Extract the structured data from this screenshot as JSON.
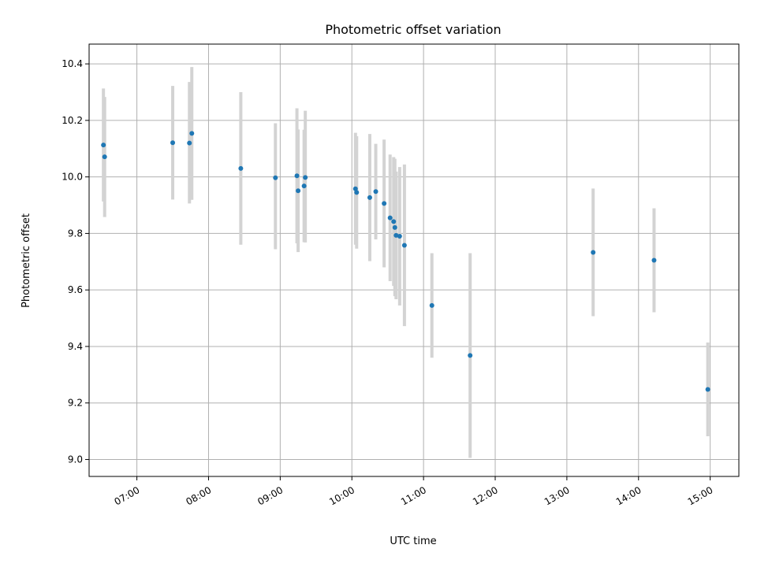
{
  "chart_data": {
    "type": "scatter",
    "title": "Photometric offset variation",
    "xlabel": "UTC time",
    "ylabel": "Photometric offset",
    "xlim": [
      "06:20",
      "15:24"
    ],
    "ylim": [
      8.94,
      10.47
    ],
    "grid": true,
    "x_ticks": [
      "07:00",
      "08:00",
      "09:00",
      "10:00",
      "11:00",
      "12:00",
      "13:00",
      "14:00",
      "15:00"
    ],
    "y_ticks": [
      "9.0",
      "9.2",
      "9.4",
      "9.6",
      "9.8",
      "10.0",
      "10.2",
      "10.4"
    ],
    "colors": {
      "point": "#1f77b4",
      "errorbar": "#d3d3d3",
      "grid": "#b0b0b0"
    },
    "points": [
      {
        "x": "06:32",
        "y": 10.113,
        "yerr_low": 9.913,
        "yerr_high": 10.313
      },
      {
        "x": "06:33",
        "y": 10.071,
        "yerr_low": 9.858,
        "yerr_high": 10.283
      },
      {
        "x": "07:30",
        "y": 10.121,
        "yerr_low": 9.92,
        "yerr_high": 10.322
      },
      {
        "x": "07:44",
        "y": 10.12,
        "yerr_low": 9.906,
        "yerr_high": 10.336
      },
      {
        "x": "07:46",
        "y": 10.154,
        "yerr_low": 9.919,
        "yerr_high": 10.389
      },
      {
        "x": "08:27",
        "y": 10.03,
        "yerr_low": 9.76,
        "yerr_high": 10.3
      },
      {
        "x": "08:56",
        "y": 9.997,
        "yerr_low": 9.744,
        "yerr_high": 10.19
      },
      {
        "x": "09:14",
        "y": 10.004,
        "yerr_low": 9.765,
        "yerr_high": 10.243
      },
      {
        "x": "09:15",
        "y": 9.951,
        "yerr_low": 9.734,
        "yerr_high": 10.168
      },
      {
        "x": "09:20",
        "y": 9.968,
        "yerr_low": 9.769,
        "yerr_high": 10.167
      },
      {
        "x": "09:21",
        "y": 9.998,
        "yerr_low": 9.768,
        "yerr_high": 10.234
      },
      {
        "x": "10:03",
        "y": 9.958,
        "yerr_low": 9.76,
        "yerr_high": 10.156
      },
      {
        "x": "10:04",
        "y": 9.945,
        "yerr_low": 9.746,
        "yerr_high": 10.144
      },
      {
        "x": "10:15",
        "y": 9.927,
        "yerr_low": 9.702,
        "yerr_high": 10.152
      },
      {
        "x": "10:20",
        "y": 9.948,
        "yerr_low": 9.779,
        "yerr_high": 10.117
      },
      {
        "x": "10:27",
        "y": 9.906,
        "yerr_low": 9.68,
        "yerr_high": 10.132
      },
      {
        "x": "10:32",
        "y": 9.855,
        "yerr_low": 9.631,
        "yerr_high": 10.079
      },
      {
        "x": "10:35",
        "y": 9.842,
        "yerr_low": 9.614,
        "yerr_high": 10.07
      },
      {
        "x": "10:36",
        "y": 9.821,
        "yerr_low": 9.578,
        "yerr_high": 10.064
      },
      {
        "x": "10:37",
        "y": 9.793,
        "yerr_low": 9.567,
        "yerr_high": 10.019
      },
      {
        "x": "10:40",
        "y": 9.79,
        "yerr_low": 9.545,
        "yerr_high": 10.035
      },
      {
        "x": "10:44",
        "y": 9.758,
        "yerr_low": 9.472,
        "yerr_high": 10.044
      },
      {
        "x": "11:07",
        "y": 9.545,
        "yerr_low": 9.36,
        "yerr_high": 9.73
      },
      {
        "x": "11:39",
        "y": 9.368,
        "yerr_low": 9.006,
        "yerr_high": 9.73
      },
      {
        "x": "13:22",
        "y": 9.733,
        "yerr_low": 9.507,
        "yerr_high": 9.959
      },
      {
        "x": "14:13",
        "y": 9.705,
        "yerr_low": 9.521,
        "yerr_high": 9.889
      },
      {
        "x": "14:58",
        "y": 9.248,
        "yerr_low": 9.082,
        "yerr_high": 9.414
      }
    ]
  }
}
